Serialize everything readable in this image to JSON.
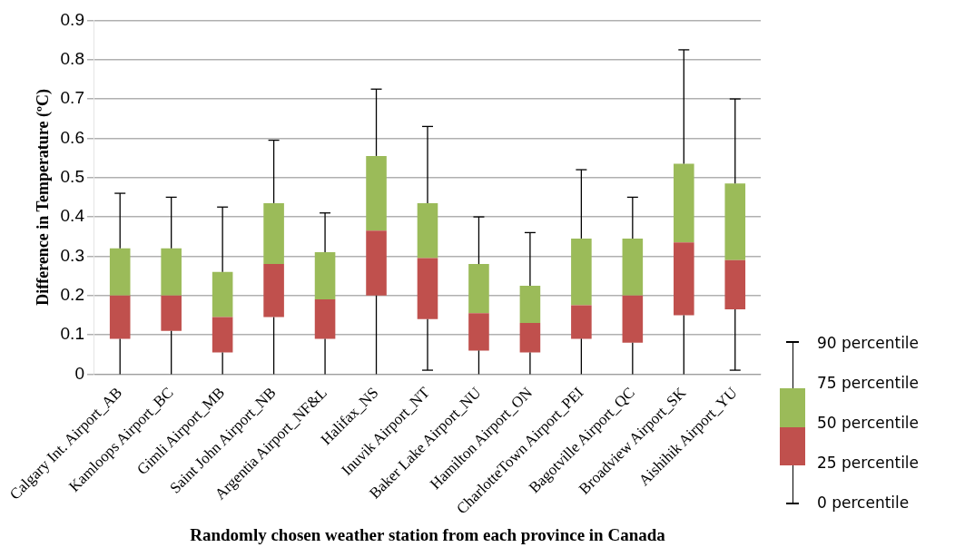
{
  "chart_data": {
    "type": "box",
    "ylabel": "Difference in Temperature (ºC)",
    "xlabel": "Randomly chosen weather station from each province in Canada",
    "categories": [
      "Calgary Int. Airport_AB",
      "Kamloops Airport_BC",
      "Gimli Airport_MB",
      "Saint John Airport_NB",
      "Argentia Airport_NF&L",
      "Halifax_NS",
      "Inuvik Airport_NT",
      "Baker Lake Airport_NU",
      "Hamilton Airport_ON",
      "CharlotteTown Airport_PEI",
      "Bagotville Airport_QC",
      "Broadview Airport_SK",
      "Aishihik Airport_YU"
    ],
    "boxes": [
      {
        "low": 0,
        "q1": 0.09,
        "median": 0.2,
        "q3": 0.32,
        "high": 0.46
      },
      {
        "low": 0,
        "q1": 0.11,
        "median": 0.2,
        "q3": 0.32,
        "high": 0.45
      },
      {
        "low": 0,
        "q1": 0.055,
        "median": 0.145,
        "q3": 0.26,
        "high": 0.425
      },
      {
        "low": 0,
        "q1": 0.145,
        "median": 0.28,
        "q3": 0.435,
        "high": 0.595
      },
      {
        "low": 0,
        "q1": 0.09,
        "median": 0.19,
        "q3": 0.31,
        "high": 0.41
      },
      {
        "low": 0,
        "q1": 0.2,
        "median": 0.365,
        "q3": 0.555,
        "high": 0.725
      },
      {
        "low": 0.01,
        "q1": 0.14,
        "median": 0.295,
        "q3": 0.435,
        "high": 0.63
      },
      {
        "low": 0,
        "q1": 0.06,
        "median": 0.155,
        "q3": 0.28,
        "high": 0.4
      },
      {
        "low": 0,
        "q1": 0.055,
        "median": 0.13,
        "q3": 0.225,
        "high": 0.36
      },
      {
        "low": 0,
        "q1": 0.09,
        "median": 0.175,
        "q3": 0.345,
        "high": 0.52
      },
      {
        "low": 0,
        "q1": 0.08,
        "median": 0.2,
        "q3": 0.345,
        "high": 0.45
      },
      {
        "low": 0,
        "q1": 0.15,
        "median": 0.335,
        "q3": 0.535,
        "high": 0.825
      },
      {
        "low": 0.01,
        "q1": 0.165,
        "median": 0.29,
        "q3": 0.485,
        "high": 0.7
      }
    ],
    "colors": [
      "#c0504d",
      "#c0504d",
      "#c0504d",
      "#c0504d",
      "#c0504d",
      "#c0504d",
      "#c0504d",
      "#c0504d",
      "#c0504d",
      "#c0504d",
      "#c0504d",
      "#c0504d",
      "#c0504d"
    ],
    "color": "#9bbb59",
    "ylim": [
      0,
      0.9
    ],
    "yticks": [
      0,
      0.1,
      0.2,
      0.3,
      0.4,
      0.5,
      0.6,
      0.7,
      0.8,
      0.9
    ],
    "grid": "y",
    "annotations": [
      "90 percentile",
      "75 percentile",
      "50 percentile",
      "25 percentile",
      "0 percentile"
    ]
  }
}
